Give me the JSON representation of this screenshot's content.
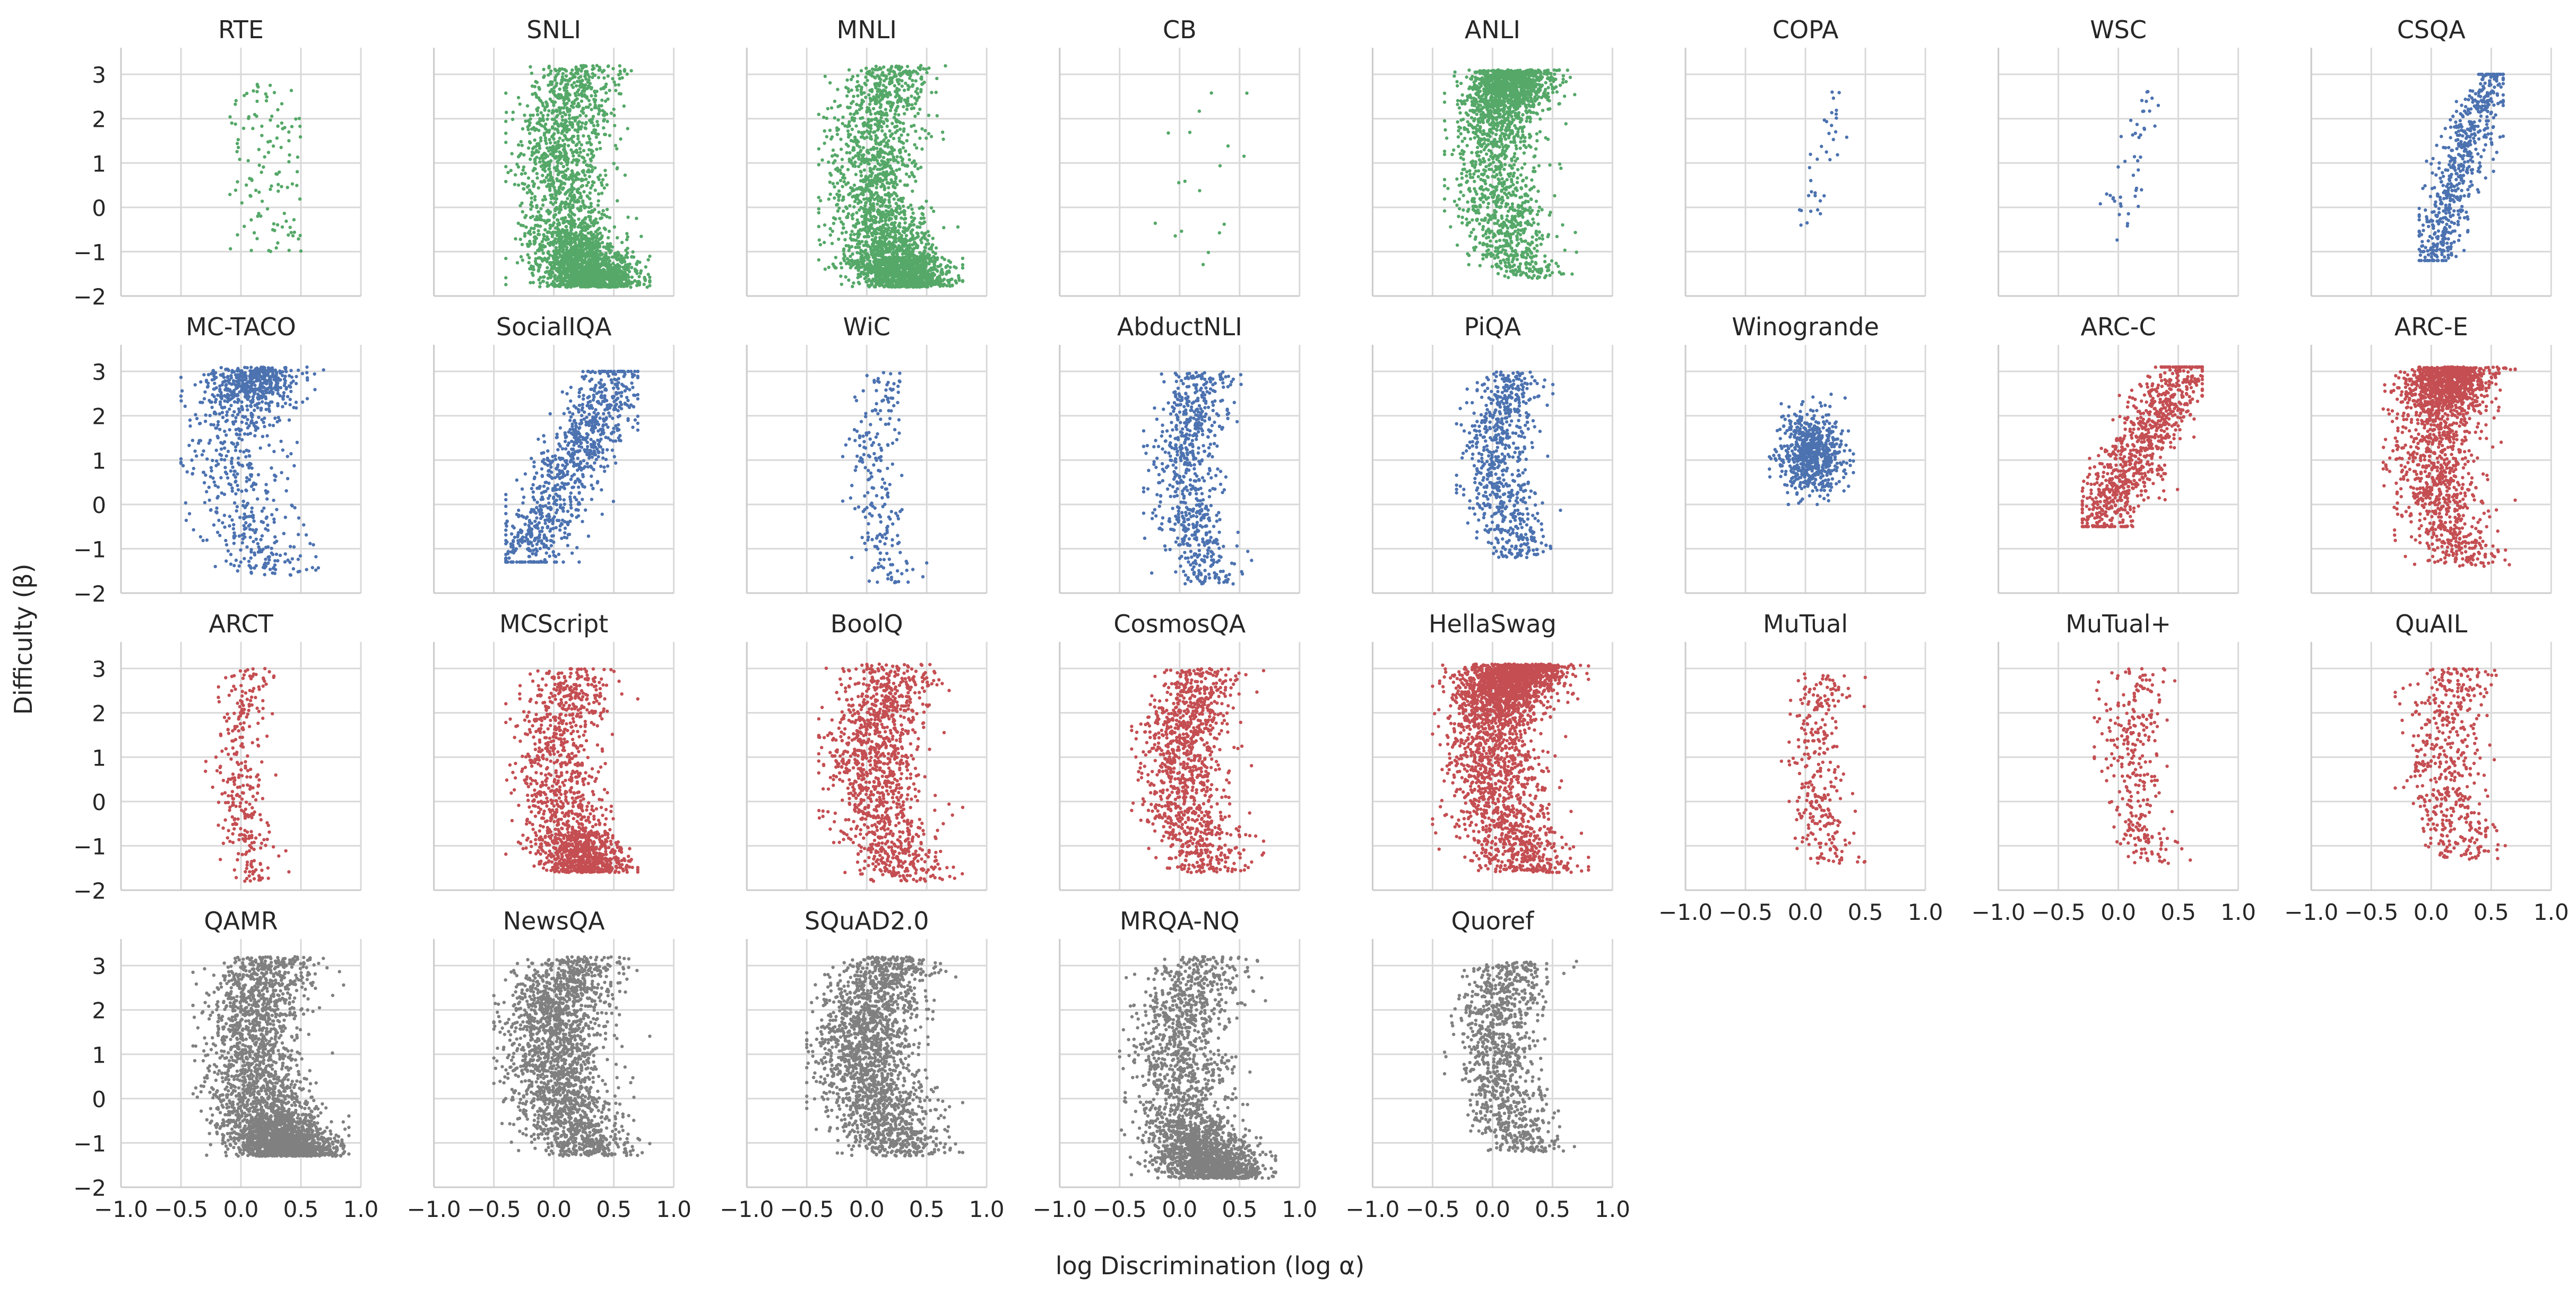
{
  "chart_data": {
    "type": "scatter",
    "layout": "4x8 small multiples",
    "xlabel": "log Discrimination (log α)",
    "ylabel": "Difficulty (β)",
    "xlim": [
      -1.0,
      1.0
    ],
    "ylim": [
      -2,
      3.6
    ],
    "xticks": [
      -1.0,
      -0.5,
      0.0,
      0.5,
      1.0
    ],
    "xtick_labels": [
      "−1.0",
      "−0.5",
      "0.0",
      "0.5",
      "1.0"
    ],
    "yticks": [
      -2,
      -1,
      0,
      1,
      2,
      3
    ],
    "ytick_labels": [
      "−2",
      "−1",
      "0",
      "1",
      "2",
      "3"
    ],
    "grid": true,
    "colors": {
      "green": "#55a868",
      "blue": "#4c72b0",
      "red": "#c44e52",
      "gray": "#808080"
    },
    "panels": [
      {
        "title": "RTE",
        "color": "green",
        "count": 120,
        "shape": "uniform",
        "x": [
          -0.1,
          0.5
        ],
        "y": [
          -1.0,
          2.9
        ]
      },
      {
        "title": "SNLI",
        "color": "green",
        "count": 2600,
        "shape": "crescent-dense-bottom",
        "x": [
          -0.4,
          0.8
        ],
        "y": [
          -1.8,
          3.2
        ]
      },
      {
        "title": "MNLI",
        "color": "green",
        "count": 2600,
        "shape": "crescent-dense-bottom",
        "x": [
          -0.4,
          0.8
        ],
        "y": [
          -1.8,
          3.2
        ]
      },
      {
        "title": "CB",
        "color": "green",
        "count": 18,
        "shape": "sparse",
        "x": [
          -0.3,
          0.6
        ],
        "y": [
          -1.4,
          2.8
        ]
      },
      {
        "title": "ANLI",
        "color": "green",
        "count": 2000,
        "shape": "crescent-dense-top",
        "x": [
          -0.4,
          0.7
        ],
        "y": [
          -1.6,
          3.1
        ]
      },
      {
        "title": "COPA",
        "color": "blue",
        "count": 35,
        "shape": "rising",
        "x": [
          -0.05,
          0.35
        ],
        "y": [
          -0.4,
          2.6
        ]
      },
      {
        "title": "WSC",
        "color": "blue",
        "count": 45,
        "shape": "rising",
        "x": [
          -0.15,
          0.4
        ],
        "y": [
          -1.0,
          2.9
        ]
      },
      {
        "title": "CSQA",
        "color": "blue",
        "count": 600,
        "shape": "rising",
        "x": [
          -0.1,
          0.6
        ],
        "y": [
          -1.2,
          3.0
        ]
      },
      {
        "title": "MC-TACO",
        "color": "blue",
        "count": 900,
        "shape": "crescent-dense-top",
        "x": [
          -0.5,
          0.7
        ],
        "y": [
          -1.6,
          3.1
        ]
      },
      {
        "title": "SocialIQA",
        "color": "blue",
        "count": 900,
        "shape": "rising",
        "x": [
          -0.4,
          0.7
        ],
        "y": [
          -1.3,
          3.0
        ]
      },
      {
        "title": "WiC",
        "color": "blue",
        "count": 220,
        "shape": "crescent",
        "x": [
          -0.2,
          0.5
        ],
        "y": [
          -1.8,
          3.0
        ]
      },
      {
        "title": "AbductNLI",
        "color": "blue",
        "count": 700,
        "shape": "crescent",
        "x": [
          -0.3,
          0.6
        ],
        "y": [
          -1.8,
          3.0
        ]
      },
      {
        "title": "PiQA",
        "color": "blue",
        "count": 700,
        "shape": "crescent",
        "x": [
          -0.3,
          0.6
        ],
        "y": [
          -1.2,
          3.0
        ]
      },
      {
        "title": "Winogrande",
        "color": "blue",
        "count": 700,
        "shape": "blob",
        "x": [
          -0.3,
          0.4
        ],
        "y": [
          0.0,
          2.8
        ]
      },
      {
        "title": "ARC-C",
        "color": "red",
        "count": 900,
        "shape": "rising",
        "x": [
          -0.3,
          0.7
        ],
        "y": [
          -0.5,
          3.1
        ]
      },
      {
        "title": "ARC-E",
        "color": "red",
        "count": 1800,
        "shape": "crescent-dense-top",
        "x": [
          -0.4,
          0.7
        ],
        "y": [
          -1.4,
          3.1
        ]
      },
      {
        "title": "ARCT",
        "color": "red",
        "count": 300,
        "shape": "crescent",
        "x": [
          -0.3,
          0.4
        ],
        "y": [
          -1.8,
          3.0
        ]
      },
      {
        "title": "MCScript",
        "color": "red",
        "count": 1500,
        "shape": "crescent-dense-bottom",
        "x": [
          -0.4,
          0.7
        ],
        "y": [
          -1.6,
          3.0
        ]
      },
      {
        "title": "BoolQ",
        "color": "red",
        "count": 1200,
        "shape": "crescent",
        "x": [
          -0.4,
          0.8
        ],
        "y": [
          -1.8,
          3.1
        ]
      },
      {
        "title": "CosmosQA",
        "color": "red",
        "count": 1100,
        "shape": "crescent",
        "x": [
          -0.4,
          0.7
        ],
        "y": [
          -1.6,
          3.0
        ]
      },
      {
        "title": "HellaSwag",
        "color": "red",
        "count": 2600,
        "shape": "crescent-dense-top",
        "x": [
          -0.5,
          0.8
        ],
        "y": [
          -1.6,
          3.1
        ]
      },
      {
        "title": "MuTual",
        "color": "red",
        "count": 300,
        "shape": "crescent",
        "x": [
          -0.2,
          0.5
        ],
        "y": [
          -1.4,
          2.9
        ]
      },
      {
        "title": "MuTual+",
        "color": "red",
        "count": 300,
        "shape": "crescent",
        "x": [
          -0.2,
          0.6
        ],
        "y": [
          -1.4,
          3.0
        ]
      },
      {
        "title": "QuAIL",
        "color": "red",
        "count": 500,
        "shape": "crescent",
        "x": [
          -0.3,
          0.7
        ],
        "y": [
          -1.3,
          3.0
        ]
      },
      {
        "title": "QAMR",
        "color": "gray",
        "count": 3000,
        "shape": "crescent-dense-bottom",
        "x": [
          -0.4,
          0.9
        ],
        "y": [
          -1.3,
          3.2
        ]
      },
      {
        "title": "NewsQA",
        "color": "gray",
        "count": 2000,
        "shape": "crescent",
        "x": [
          -0.5,
          0.8
        ],
        "y": [
          -1.3,
          3.2
        ]
      },
      {
        "title": "SQuAD2.0",
        "color": "gray",
        "count": 2000,
        "shape": "crescent",
        "x": [
          -0.5,
          0.8
        ],
        "y": [
          -1.3,
          3.2
        ]
      },
      {
        "title": "MRQA-NQ",
        "color": "gray",
        "count": 2400,
        "shape": "crescent-dense-bottom",
        "x": [
          -0.5,
          0.8
        ],
        "y": [
          -1.8,
          3.2
        ]
      },
      {
        "title": "Quoref",
        "color": "gray",
        "count": 1000,
        "shape": "crescent",
        "x": [
          -0.4,
          0.7
        ],
        "y": [
          -1.2,
          3.1
        ]
      }
    ]
  }
}
